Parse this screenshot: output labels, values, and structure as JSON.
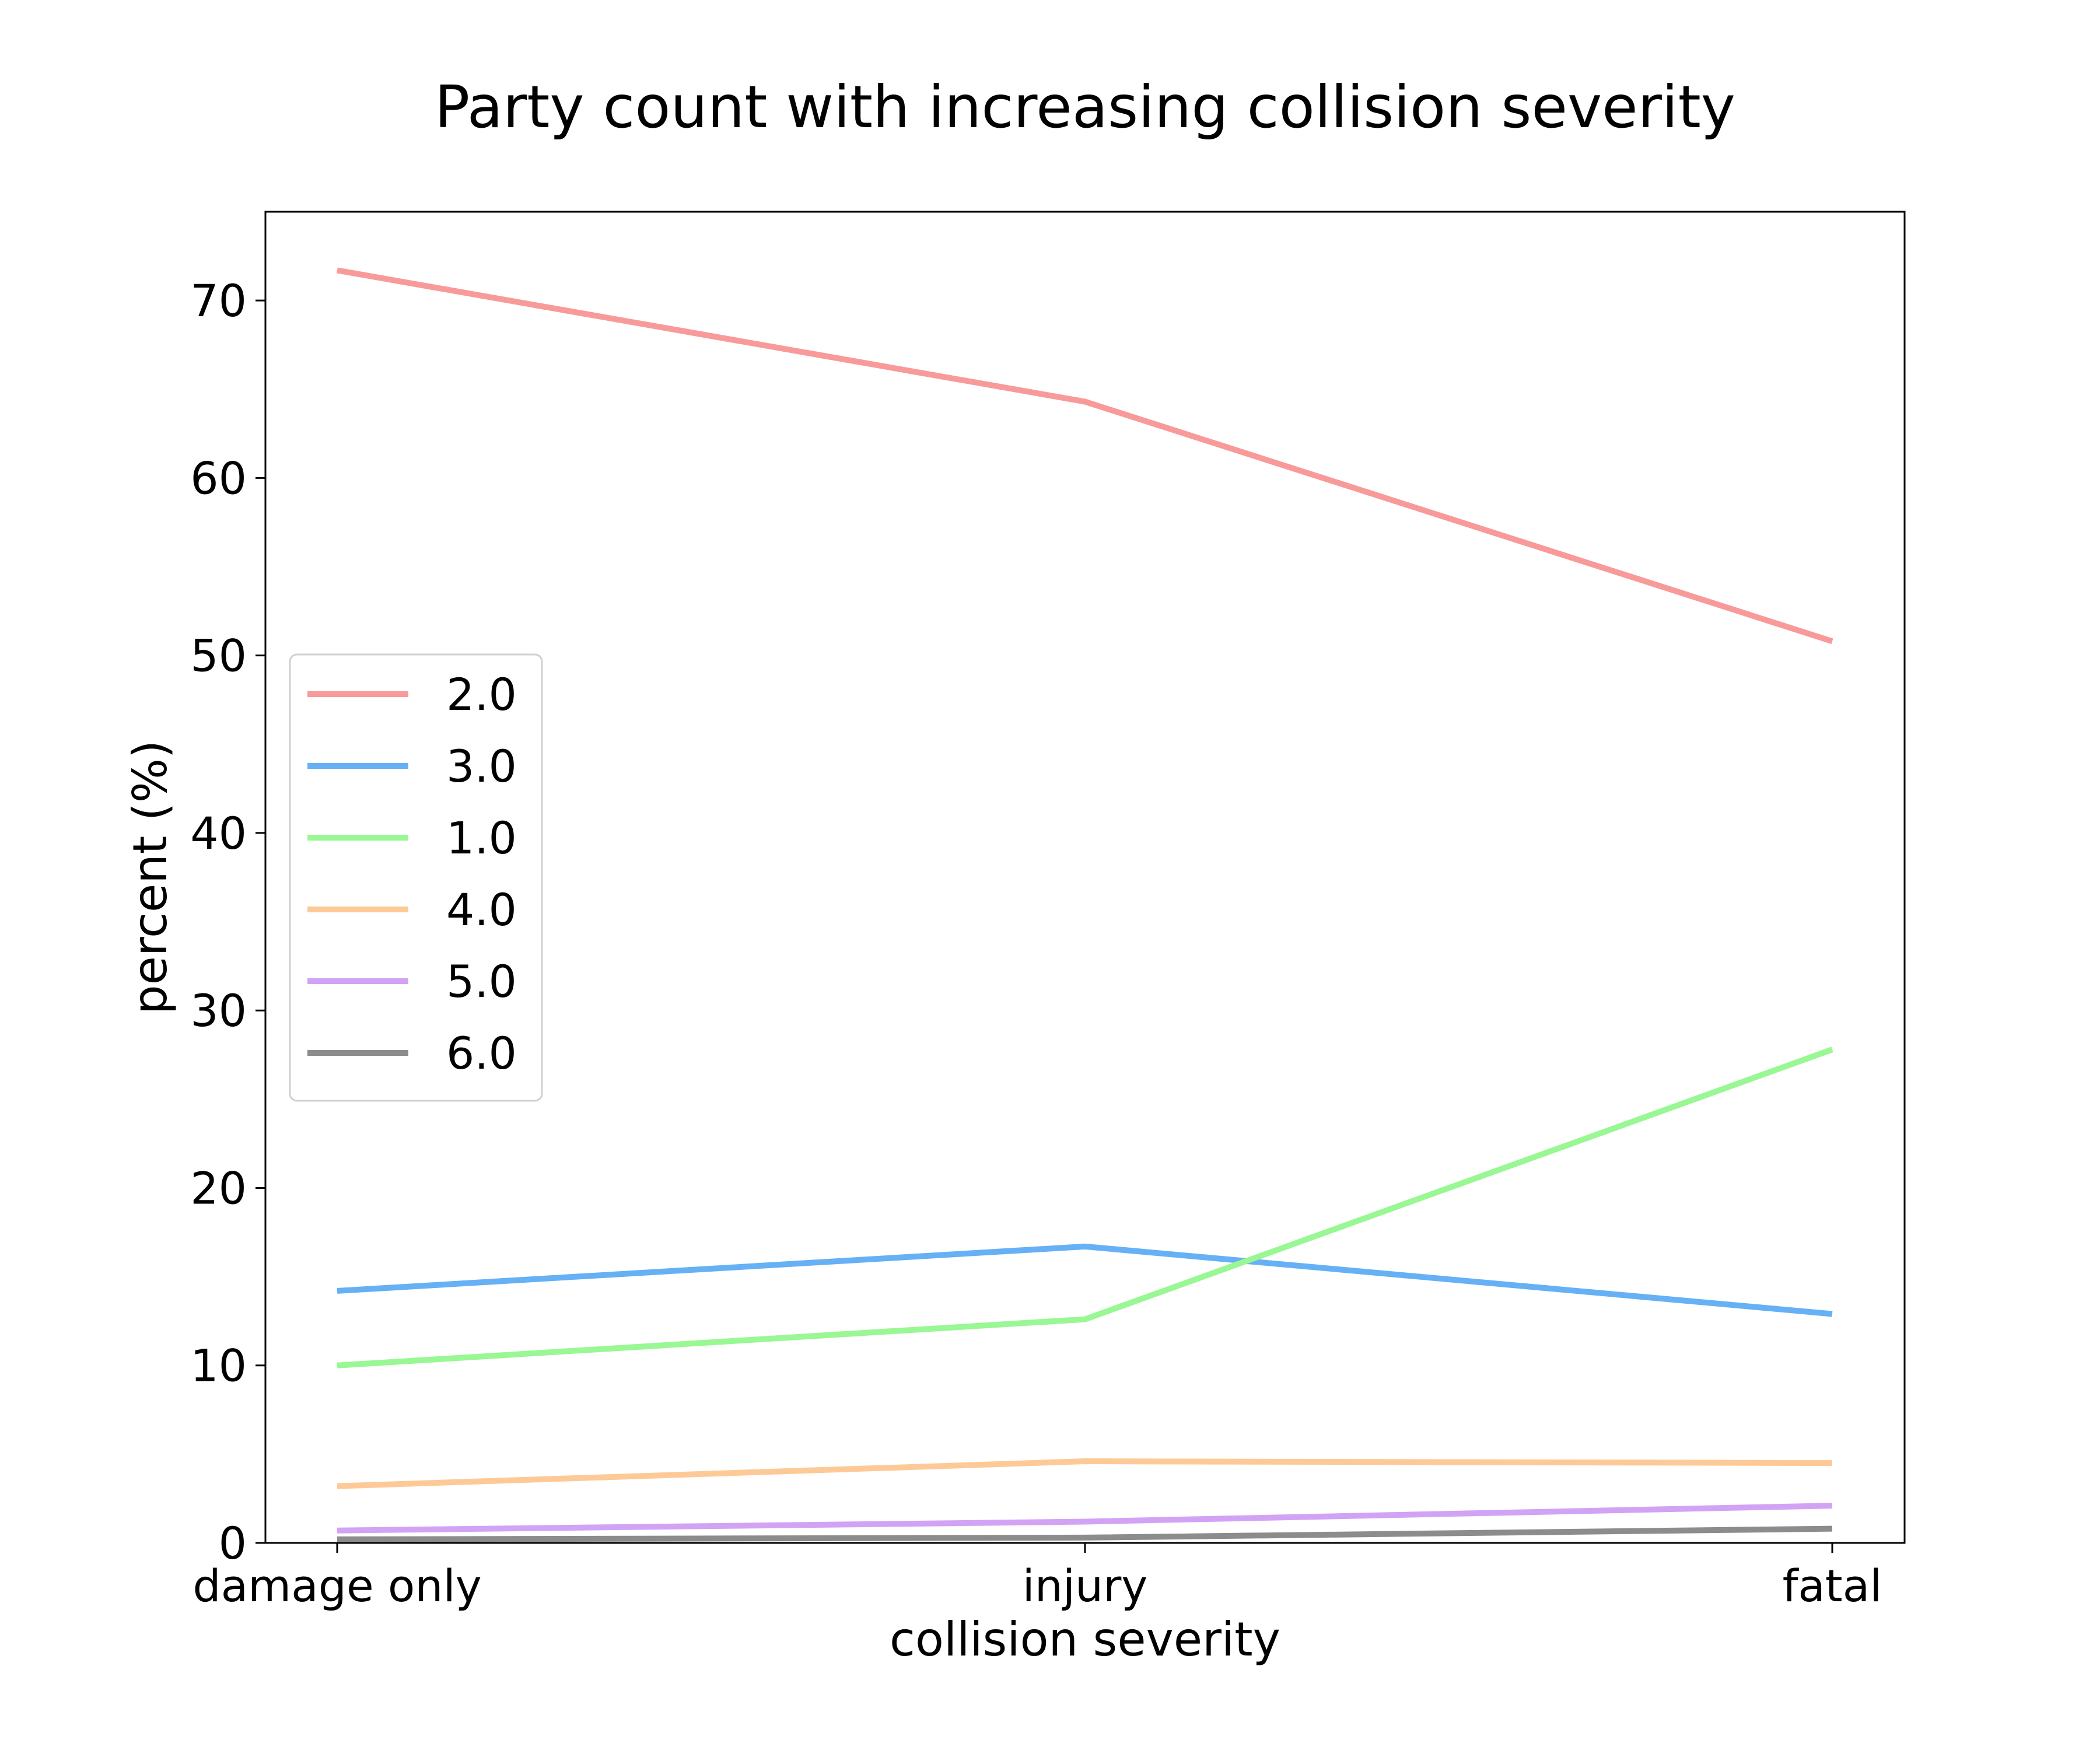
{
  "chart_data": {
    "type": "line",
    "title": "Party count with increasing collision severity",
    "xlabel": "collision severity",
    "ylabel": "percent (%)",
    "categories": [
      "damage only",
      "injury",
      "fatal"
    ],
    "yticks": [
      0,
      10,
      20,
      30,
      40,
      50,
      60,
      70
    ],
    "ylim": [
      0,
      75
    ],
    "grid": false,
    "legend_position": "center-left",
    "series": [
      {
        "name": "2.0",
        "color": "#f89a9a",
        "values": [
          71.7,
          64.3,
          50.8
        ]
      },
      {
        "name": "3.0",
        "color": "#66b0f5",
        "values": [
          14.2,
          16.7,
          12.9
        ]
      },
      {
        "name": "1.0",
        "color": "#99f794",
        "values": [
          10.0,
          12.6,
          27.8
        ]
      },
      {
        "name": "4.0",
        "color": "#fdca97",
        "values": [
          3.2,
          4.6,
          4.5
        ]
      },
      {
        "name": "5.0",
        "color": "#d2a3f5",
        "values": [
          0.7,
          1.2,
          2.1
        ]
      },
      {
        "name": "6.0",
        "color": "#8c8c8c",
        "values": [
          0.2,
          0.3,
          0.8
        ]
      }
    ]
  }
}
